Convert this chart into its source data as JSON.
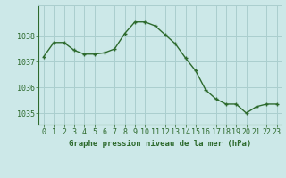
{
  "x": [
    0,
    1,
    2,
    3,
    4,
    5,
    6,
    7,
    8,
    9,
    10,
    11,
    12,
    13,
    14,
    15,
    16,
    17,
    18,
    19,
    20,
    21,
    22,
    23
  ],
  "y": [
    1037.2,
    1037.75,
    1037.75,
    1037.45,
    1037.3,
    1037.3,
    1037.35,
    1037.5,
    1038.1,
    1038.55,
    1038.55,
    1038.4,
    1038.05,
    1037.7,
    1037.15,
    1036.65,
    1035.9,
    1035.55,
    1035.35,
    1035.35,
    1035.0,
    1035.25,
    1035.35,
    1035.35
  ],
  "line_color": "#2d6a2d",
  "marker": "+",
  "bg_color": "#cce8e8",
  "grid_color": "#aacece",
  "xlabel": "Graphe pression niveau de la mer (hPa)",
  "yticks": [
    1035,
    1036,
    1037,
    1038
  ],
  "xlim": [
    -0.5,
    23.5
  ],
  "ylim": [
    1034.55,
    1039.2
  ],
  "tick_color": "#2d6a2d",
  "label_color": "#2d6a2d",
  "font_size": 6.0,
  "xlabel_fontsize": 6.5
}
